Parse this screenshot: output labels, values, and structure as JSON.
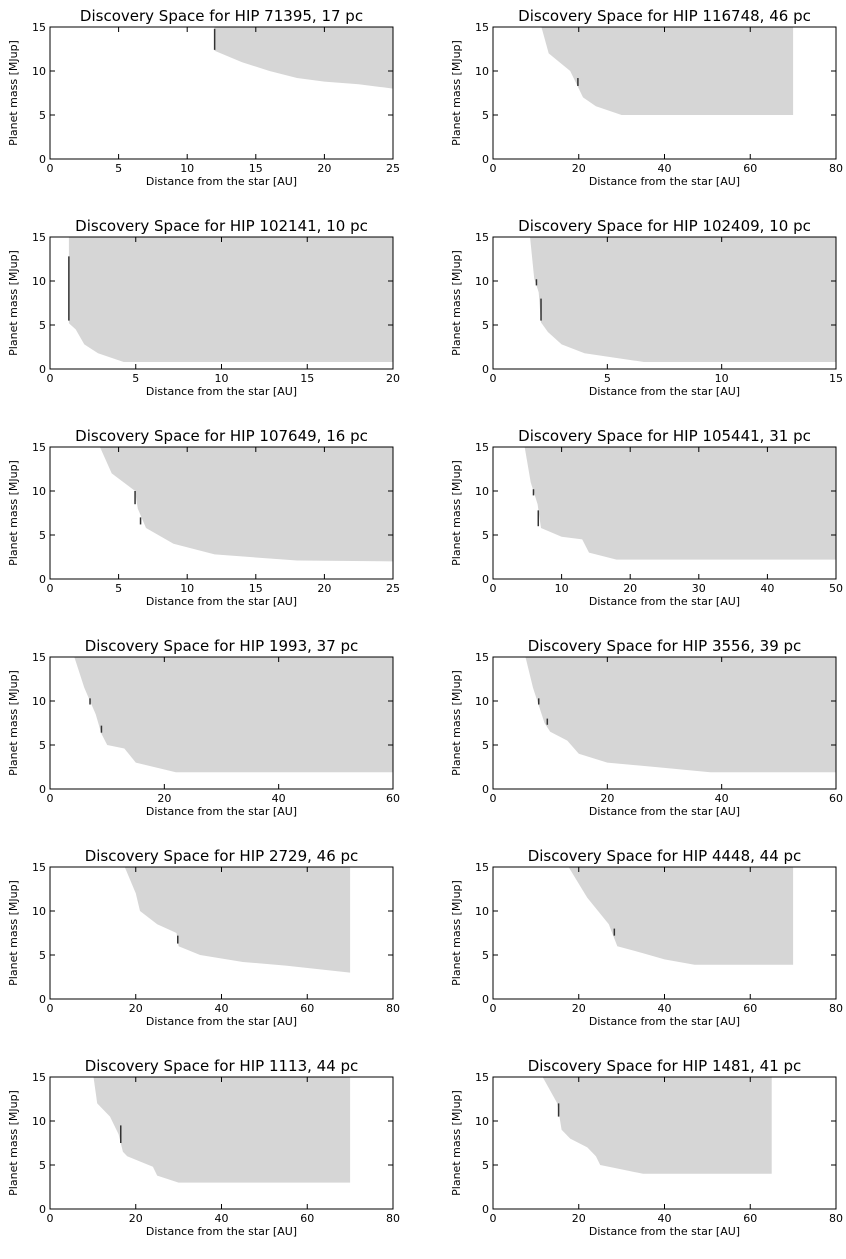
{
  "chart_data": [
    {
      "type": "area",
      "title": "Discovery Space for HIP 71395, 17 pc",
      "xlabel": "Distance from the star [AU]",
      "ylabel": "Planet mass [MJup]",
      "xlim": [
        0,
        25
      ],
      "ylim": [
        0,
        15
      ],
      "xticks": [
        0,
        5,
        10,
        15,
        20,
        25
      ],
      "yticks": [
        0,
        5,
        10,
        15
      ],
      "region": [
        [
          12,
          15.5
        ],
        [
          12,
          12.3
        ],
        [
          14,
          11
        ],
        [
          16,
          10
        ],
        [
          18,
          9.2
        ],
        [
          20,
          8.8
        ],
        [
          22.5,
          8.5
        ],
        [
          25,
          8.0
        ],
        [
          25,
          15.5
        ]
      ],
      "segments": [
        [
          [
            12,
            12.4
          ],
          [
            12,
            14.8
          ]
        ]
      ]
    },
    {
      "type": "area",
      "title": "Discovery Space for HIP 116748, 46 pc",
      "xlabel": "Distance from the star [AU]",
      "ylabel": "Planet mass [MJup]",
      "xlim": [
        0,
        80
      ],
      "ylim": [
        0,
        15
      ],
      "xticks": [
        0,
        20,
        40,
        60,
        80
      ],
      "yticks": [
        0,
        5,
        10,
        15
      ],
      "region": [
        [
          11,
          15.5
        ],
        [
          13,
          12
        ],
        [
          18,
          10
        ],
        [
          20,
          8
        ],
        [
          21,
          7
        ],
        [
          24,
          6
        ],
        [
          30,
          5
        ],
        [
          70,
          5
        ],
        [
          70,
          15.5
        ]
      ],
      "segments": [
        [
          [
            19.8,
            8.3
          ],
          [
            19.8,
            9.2
          ]
        ]
      ]
    },
    {
      "type": "area",
      "title": "Discovery Space for HIP 102141, 10 pc",
      "xlabel": "Distance from the star [AU]",
      "ylabel": "Planet mass [MJup]",
      "xlim": [
        0,
        20
      ],
      "ylim": [
        0,
        15
      ],
      "xticks": [
        0,
        5,
        10,
        15,
        20
      ],
      "yticks": [
        0,
        5,
        10,
        15
      ],
      "region": [
        [
          1.1,
          15.5
        ],
        [
          1.1,
          5.2
        ],
        [
          1.5,
          4.5
        ],
        [
          2,
          2.8
        ],
        [
          2.8,
          1.8
        ],
        [
          4.3,
          0.8
        ],
        [
          20,
          0.8
        ],
        [
          20,
          15.5
        ]
      ],
      "segments": [
        [
          [
            1.1,
            5.5
          ],
          [
            1.1,
            12.8
          ]
        ]
      ]
    },
    {
      "type": "area",
      "title": "Discovery Space for HIP 102409, 10 pc",
      "xlabel": "Distance from the star [AU]",
      "ylabel": "Planet mass [MJup]",
      "xlim": [
        0,
        15
      ],
      "ylim": [
        0,
        15
      ],
      "xticks": [
        0,
        5,
        10,
        15
      ],
      "yticks": [
        0,
        5,
        10,
        15
      ],
      "region": [
        [
          1.6,
          15.5
        ],
        [
          1.8,
          10.3
        ],
        [
          2.0,
          8.7
        ],
        [
          2.1,
          5.3
        ],
        [
          2.4,
          4.2
        ],
        [
          3,
          2.8
        ],
        [
          4,
          1.8
        ],
        [
          6.6,
          0.8
        ],
        [
          15,
          0.8
        ],
        [
          15,
          15.5
        ]
      ],
      "segments": [
        [
          [
            1.9,
            9.5
          ],
          [
            1.9,
            10.2
          ]
        ],
        [
          [
            2.1,
            5.5
          ],
          [
            2.1,
            8.0
          ]
        ]
      ]
    },
    {
      "type": "area",
      "title": "Discovery Space for HIP 107649, 16 pc",
      "xlabel": "Distance from the star [AU]",
      "ylabel": "Planet mass [MJup]",
      "xlim": [
        0,
        25
      ],
      "ylim": [
        0,
        15
      ],
      "xticks": [
        0,
        5,
        10,
        15,
        20,
        25
      ],
      "yticks": [
        0,
        5,
        10,
        15
      ],
      "region": [
        [
          3.5,
          15.5
        ],
        [
          4.5,
          12
        ],
        [
          6.2,
          10
        ],
        [
          6.4,
          8
        ],
        [
          7,
          5.8
        ],
        [
          9,
          4
        ],
        [
          12,
          2.8
        ],
        [
          18,
          2.1
        ],
        [
          25,
          2.0
        ],
        [
          25,
          15.5
        ]
      ],
      "segments": [
        [
          [
            6.2,
            8.5
          ],
          [
            6.2,
            10
          ]
        ],
        [
          [
            6.6,
            6.2
          ],
          [
            6.6,
            7
          ]
        ]
      ]
    },
    {
      "type": "area",
      "title": "Discovery Space for HIP 105441, 31 pc",
      "xlabel": "Distance from the star [AU]",
      "ylabel": "Planet mass [MJup]",
      "xlim": [
        0,
        50
      ],
      "ylim": [
        0,
        15
      ],
      "xticks": [
        0,
        10,
        20,
        30,
        40,
        50
      ],
      "yticks": [
        0,
        5,
        10,
        15
      ],
      "region": [
        [
          4.5,
          15.5
        ],
        [
          5.5,
          11
        ],
        [
          6.5,
          8.5
        ],
        [
          7,
          5.8
        ],
        [
          10,
          4.8
        ],
        [
          13,
          4.5
        ],
        [
          14,
          3
        ],
        [
          18,
          2.2
        ],
        [
          50,
          2.2
        ],
        [
          50,
          15.5
        ]
      ],
      "segments": [
        [
          [
            5.9,
            9.5
          ],
          [
            5.9,
            10.2
          ]
        ],
        [
          [
            6.6,
            6.0
          ],
          [
            6.6,
            7.8
          ]
        ]
      ]
    },
    {
      "type": "area",
      "title": "Discovery Space for HIP 1993, 37 pc",
      "xlabel": "Distance from the star [AU]",
      "ylabel": "Planet mass [MJup]",
      "xlim": [
        0,
        60
      ],
      "ylim": [
        0,
        15
      ],
      "xticks": [
        0,
        20,
        40,
        60
      ],
      "yticks": [
        0,
        5,
        10,
        15
      ],
      "region": [
        [
          4,
          15.5
        ],
        [
          6,
          11.5
        ],
        [
          8,
          8.5
        ],
        [
          9,
          6.3
        ],
        [
          10,
          5
        ],
        [
          13,
          4.6
        ],
        [
          15,
          3
        ],
        [
          22,
          1.9
        ],
        [
          60,
          1.9
        ],
        [
          60,
          15.5
        ]
      ],
      "segments": [
        [
          [
            7,
            9.6
          ],
          [
            7,
            10.3
          ]
        ],
        [
          [
            9,
            6.4
          ],
          [
            9,
            7.2
          ]
        ]
      ]
    },
    {
      "type": "area",
      "title": "Discovery Space for HIP 3556, 39 pc",
      "xlabel": "Distance from the star [AU]",
      "ylabel": "Planet mass [MJup]",
      "xlim": [
        0,
        60
      ],
      "ylim": [
        0,
        15
      ],
      "xticks": [
        0,
        20,
        40,
        60
      ],
      "yticks": [
        0,
        5,
        10,
        15
      ],
      "region": [
        [
          5.5,
          15.5
        ],
        [
          7,
          11.5
        ],
        [
          9,
          7.5
        ],
        [
          10,
          6.5
        ],
        [
          13,
          5.5
        ],
        [
          15,
          4
        ],
        [
          20,
          3
        ],
        [
          30,
          2.4
        ],
        [
          38,
          1.9
        ],
        [
          60,
          1.9
        ],
        [
          60,
          15.5
        ]
      ],
      "segments": [
        [
          [
            8,
            9.6
          ],
          [
            8,
            10.3
          ]
        ],
        [
          [
            9.5,
            7.3
          ],
          [
            9.5,
            8
          ]
        ]
      ]
    },
    {
      "type": "area",
      "title": "Discovery Space for HIP 2729, 46 pc",
      "xlabel": "Distance from the star [AU]",
      "ylabel": "Planet mass [MJup]",
      "xlim": [
        0,
        80
      ],
      "ylim": [
        0,
        15
      ],
      "xticks": [
        0,
        20,
        40,
        60,
        80
      ],
      "yticks": [
        0,
        5,
        10,
        15
      ],
      "region": [
        [
          17,
          15.5
        ],
        [
          20,
          12
        ],
        [
          21,
          10
        ],
        [
          25,
          8.5
        ],
        [
          29.5,
          7.5
        ],
        [
          30,
          6
        ],
        [
          35,
          5
        ],
        [
          45,
          4.2
        ],
        [
          55,
          3.8
        ],
        [
          70,
          3
        ],
        [
          70,
          15.5
        ]
      ],
      "segments": [
        [
          [
            29.8,
            6.3
          ],
          [
            29.8,
            7.2
          ]
        ]
      ]
    },
    {
      "type": "area",
      "title": "Discovery Space for HIP 4448, 44 pc",
      "xlabel": "Distance from the star [AU]",
      "ylabel": "Planet mass [MJup]",
      "xlim": [
        0,
        80
      ],
      "ylim": [
        0,
        15
      ],
      "xticks": [
        0,
        20,
        40,
        60,
        80
      ],
      "yticks": [
        0,
        5,
        10,
        15
      ],
      "region": [
        [
          17,
          15.5
        ],
        [
          22,
          11.5
        ],
        [
          27,
          8.5
        ],
        [
          29,
          6
        ],
        [
          35,
          5.2
        ],
        [
          40,
          4.5
        ],
        [
          47,
          3.9
        ],
        [
          70,
          3.9
        ],
        [
          70,
          15.5
        ]
      ],
      "segments": [
        [
          [
            28.3,
            7.2
          ],
          [
            28.3,
            8
          ]
        ]
      ]
    },
    {
      "type": "area",
      "title": "Discovery Space for HIP 1113, 44 pc",
      "xlabel": "Distance from the star [AU]",
      "ylabel": "Planet mass [MJup]",
      "xlim": [
        0,
        80
      ],
      "ylim": [
        0,
        15
      ],
      "xticks": [
        0,
        20,
        40,
        60,
        80
      ],
      "yticks": [
        0,
        5,
        10,
        15
      ],
      "region": [
        [
          10,
          15.5
        ],
        [
          11,
          12
        ],
        [
          14,
          10.5
        ],
        [
          16,
          8.5
        ],
        [
          17,
          6.5
        ],
        [
          18,
          6
        ],
        [
          22,
          5.2
        ],
        [
          24,
          4.8
        ],
        [
          25,
          3.8
        ],
        [
          30,
          3
        ],
        [
          70,
          3
        ],
        [
          70,
          15.5
        ]
      ],
      "segments": [
        [
          [
            16.5,
            7.5
          ],
          [
            16.5,
            9.5
          ]
        ]
      ]
    },
    {
      "type": "area",
      "title": "Discovery Space for HIP 1481, 41 pc",
      "xlabel": "Distance from the star [AU]",
      "ylabel": "Planet mass [MJup]",
      "xlim": [
        0,
        80
      ],
      "ylim": [
        0,
        15
      ],
      "xticks": [
        0,
        20,
        40,
        60,
        80
      ],
      "yticks": [
        0,
        5,
        10,
        15
      ],
      "region": [
        [
          11,
          15.5
        ],
        [
          15,
          12
        ],
        [
          16,
          9
        ],
        [
          18,
          8
        ],
        [
          22,
          7
        ],
        [
          24,
          6
        ],
        [
          25,
          5
        ],
        [
          30,
          4.5
        ],
        [
          35,
          4
        ],
        [
          65,
          4
        ],
        [
          65,
          15.5
        ]
      ],
      "segments": [
        [
          [
            15.3,
            10.5
          ],
          [
            15.3,
            12
          ]
        ]
      ]
    }
  ]
}
